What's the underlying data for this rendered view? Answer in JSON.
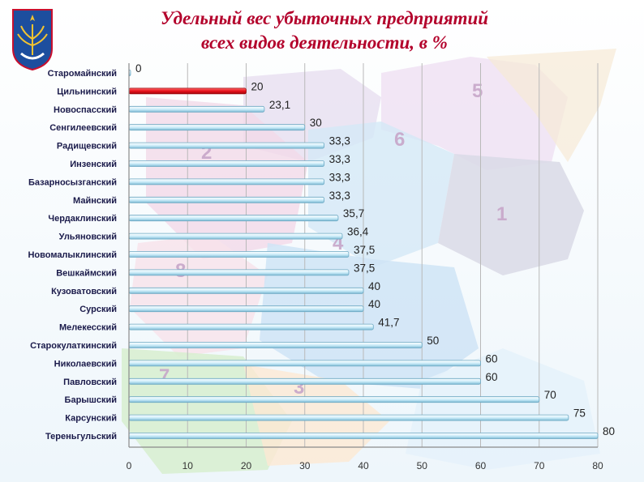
{
  "chart_data": {
    "type": "bar",
    "orientation": "horizontal",
    "title": "Удельный вес убыточных предприятий",
    "subtitle": "всех видов деятельности, в %",
    "xlabel": "",
    "ylabel": "",
    "xlim": [
      0,
      80
    ],
    "x_ticks": [
      "0",
      "10",
      "20",
      "30",
      "40",
      "50",
      "60",
      "70",
      "80"
    ],
    "grid": true,
    "legend": "none",
    "highlight_color": "#e8101a",
    "bar_color": "#cfeefa",
    "categories": [
      "Старомайнский",
      "Цильнинский",
      "Новоспасский",
      "Сенгилеевский",
      "Радищевский",
      "Инзенский",
      "Базарносызганский",
      "Майнский",
      "Чердаклинский",
      "Ульяновский",
      "Новомалыклинский",
      "Вешкаймский",
      "Кузоватовский",
      "Сурский",
      "Мелекесский",
      "Старокулаткинский",
      "Николаевский",
      "Павловский",
      "Барышский",
      "Карсунский",
      "Тереньгульский"
    ],
    "values": [
      0,
      20,
      23.1,
      30,
      33.3,
      33.3,
      33.3,
      33.3,
      35.7,
      36.4,
      37.5,
      37.5,
      40,
      40,
      41.7,
      50,
      60,
      60,
      70,
      75,
      80
    ],
    "value_labels": [
      "0",
      "20",
      "23,1",
      "30",
      "33,3",
      "33,3",
      "33,3",
      "33,3",
      "35,7",
      "36,4",
      "37,5",
      "37,5",
      "40",
      "40",
      "41,7",
      "50",
      "60",
      "60",
      "70",
      "75",
      "80"
    ],
    "highlight_index": 1
  },
  "background_map": {
    "district_numbers": [
      "1",
      "2",
      "3",
      "4",
      "5",
      "6",
      "7",
      "8"
    ]
  }
}
